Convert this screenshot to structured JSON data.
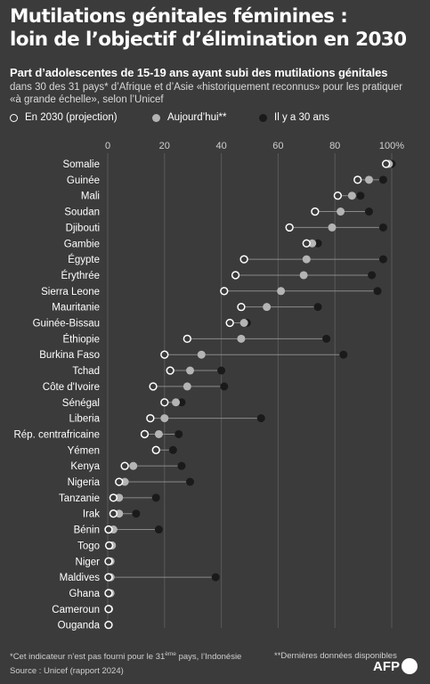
{
  "header": {
    "title_line1": "Mutilations génitales féminines :",
    "title_line2": "loin de l’objectif d’élimination en 2030",
    "subtitle": "Part d’adolescentes de 15-19 ans ayant subi des mutilations génitales",
    "description_line1": "dans 30 des 31 pays* d’Afrique et d’Asie «historiquement reconnus» pour les pratiquer",
    "description_line2": "«à grande échelle», selon l’Unicef"
  },
  "legend": {
    "projection": "En 2030 (projection)",
    "today": "Aujourd’hui**",
    "thirty_years": "Il y a 30 ans"
  },
  "colors": {
    "background": "#3b3b3b",
    "projection_marker": "#ffffff",
    "today_marker": "#b4b4b4",
    "thirty_years_marker": "#1a1a1a",
    "connector_line": "#8a8a8a",
    "gridline": "#5a5a5a"
  },
  "chart_data": {
    "type": "scatter",
    "orientation": "horizontal dot plot",
    "xlim": [
      0,
      100
    ],
    "x_ticks": [
      0,
      20,
      40,
      60,
      80,
      100
    ],
    "x_tick_labels": [
      "0",
      "20",
      "40",
      "60",
      "80",
      "100%"
    ],
    "categories": [
      "Somalie",
      "Guinée",
      "Mali",
      "Soudan",
      "Djibouti",
      "Gambie",
      "Égypte",
      "Érythrée",
      "Sierra Leone",
      "Mauritanie",
      "Guinée-Bissau",
      "Éthiopie",
      "Burkina Faso",
      "Tchad",
      "Côte d'Ivoire",
      "Sénégal",
      "Liberia",
      "Rép. centrafricaine",
      "Yémen",
      "Kenya",
      "Nigeria",
      "Tanzanie",
      "Irak",
      "Bénin",
      "Togo",
      "Niger",
      "Maldives",
      "Ghana",
      "Cameroun",
      "Ouganda"
    ],
    "series": [
      {
        "name": "En 2030 (projection)",
        "values": [
          98,
          88,
          81,
          73,
          64,
          70,
          48,
          45,
          41,
          47,
          43,
          28,
          20,
          22,
          16,
          20,
          15,
          13,
          17,
          6,
          4,
          2,
          2,
          0.3,
          0.5,
          0.3,
          0.3,
          0.3,
          0.3,
          0.3
        ]
      },
      {
        "name": "Aujourd’hui**",
        "values": [
          99,
          92,
          86,
          82,
          79,
          72,
          70,
          69,
          61,
          56,
          48,
          47,
          33,
          29,
          28,
          24,
          20,
          18,
          17,
          9,
          6,
          4,
          4,
          2,
          1.5,
          1,
          1,
          1,
          0.5,
          0.3
        ]
      },
      {
        "name": "Il y a 30 ans",
        "values": [
          100,
          97,
          89,
          92,
          97,
          74,
          97,
          93,
          95,
          74,
          49,
          77,
          83,
          40,
          41,
          26,
          54,
          25,
          23,
          26,
          29,
          17,
          10,
          18,
          1,
          0.5,
          38,
          1,
          0.3,
          0.3
        ]
      }
    ]
  },
  "footer": {
    "note1_prefix": "*Cet indicateur n’est pas fourni pour le 31",
    "note1_sup": "ème",
    "note1_suffix": " pays, l’Indonésie",
    "note2": "**Dernières données disponibles",
    "source": "Source : Unicef (rapport 2024)",
    "logo": "AFP"
  }
}
